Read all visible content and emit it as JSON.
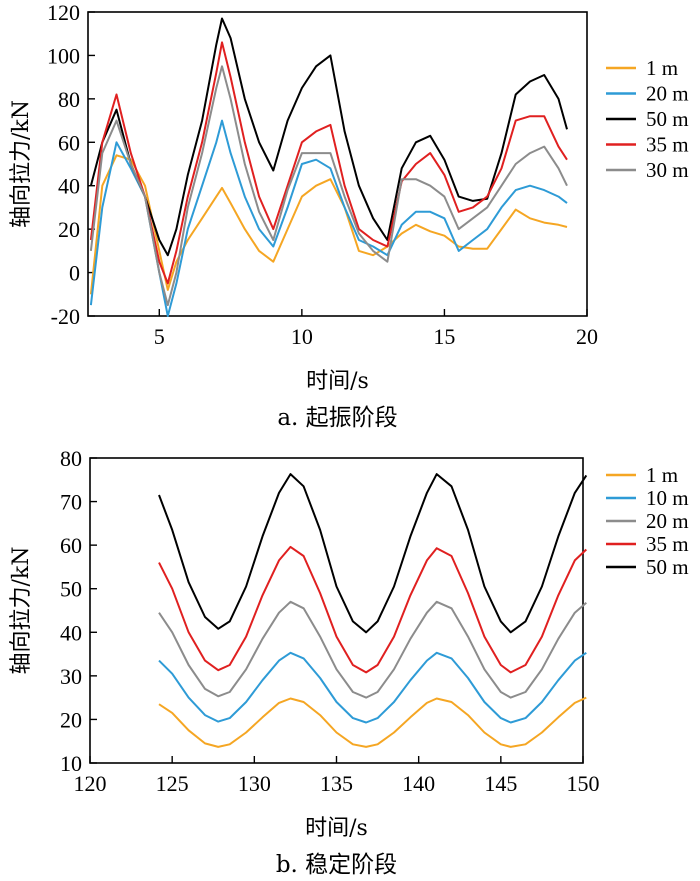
{
  "chart_data": [
    {
      "type": "line",
      "caption": "a. 起振阶段",
      "xlabel": "时间/s",
      "ylabel": "轴向拉力/kN",
      "xlim": [
        2.5,
        20
      ],
      "ylim": [
        -20,
        120
      ],
      "xticks": [
        5,
        10,
        15,
        20
      ],
      "yticks": [
        -20,
        0,
        20,
        40,
        60,
        80,
        100,
        120
      ],
      "legend_position": "right",
      "series": [
        {
          "name": "1 m",
          "color": "#f5a623",
          "x": [
            2.6,
            3.0,
            3.5,
            4.0,
            4.5,
            5.0,
            5.3,
            5.6,
            6.0,
            6.5,
            7.0,
            7.2,
            7.5,
            8.0,
            8.5,
            9.0,
            9.5,
            10.0,
            10.5,
            11.0,
            11.5,
            12.0,
            12.5,
            13.0,
            13.5,
            14.0,
            14.5,
            15.0,
            15.5,
            16.0,
            16.5,
            17.0,
            17.5,
            18.0,
            18.5,
            19.0,
            19.3
          ],
          "y": [
            -10,
            40,
            54,
            52,
            40,
            10,
            -8,
            5,
            15,
            25,
            35,
            39,
            32,
            20,
            10,
            5,
            20,
            35,
            40,
            43,
            30,
            10,
            8,
            12,
            18,
            22,
            19,
            17,
            12,
            11,
            11,
            20,
            29,
            25,
            23,
            22,
            21
          ]
        },
        {
          "name": "20 m",
          "color": "#2e9bd6",
          "x": [
            2.6,
            3.0,
            3.5,
            4.0,
            4.5,
            5.0,
            5.3,
            5.6,
            6.0,
            6.5,
            7.0,
            7.2,
            7.5,
            8.0,
            8.5,
            9.0,
            9.5,
            10.0,
            10.5,
            11.0,
            11.5,
            12.0,
            12.5,
            13.0,
            13.5,
            14.0,
            14.5,
            15.0,
            15.5,
            16.0,
            16.5,
            17.0,
            17.5,
            18.0,
            18.5,
            19.0,
            19.3
          ],
          "y": [
            -15,
            30,
            60,
            48,
            35,
            0,
            -20,
            -5,
            20,
            40,
            60,
            70,
            55,
            35,
            20,
            12,
            30,
            50,
            52,
            48,
            30,
            15,
            12,
            8,
            22,
            28,
            28,
            25,
            10,
            15,
            20,
            30,
            38,
            40,
            38,
            35,
            32
          ]
        },
        {
          "name": "50 m",
          "color": "#000000",
          "x": [
            2.6,
            3.0,
            3.5,
            4.0,
            4.5,
            5.0,
            5.3,
            5.6,
            6.0,
            6.5,
            7.0,
            7.2,
            7.5,
            8.0,
            8.5,
            9.0,
            9.5,
            10.0,
            10.5,
            11.0,
            11.5,
            12.0,
            12.5,
            13.0,
            13.5,
            14.0,
            14.5,
            15.0,
            15.5,
            16.0,
            16.5,
            17.0,
            17.5,
            18.0,
            18.5,
            19.0,
            19.3
          ],
          "y": [
            40,
            60,
            75,
            50,
            35,
            15,
            8,
            20,
            45,
            70,
            105,
            117,
            108,
            80,
            60,
            47,
            70,
            85,
            95,
            100,
            65,
            40,
            25,
            15,
            48,
            60,
            63,
            52,
            35,
            33,
            34,
            55,
            82,
            88,
            91,
            80,
            66
          ]
        },
        {
          "name": "35 m",
          "color": "#e02020",
          "x": [
            2.6,
            3.0,
            3.5,
            4.0,
            4.5,
            5.0,
            5.3,
            5.6,
            6.0,
            6.5,
            7.0,
            7.2,
            7.5,
            8.0,
            8.5,
            9.0,
            9.5,
            10.0,
            10.5,
            11.0,
            11.5,
            12.0,
            12.5,
            13.0,
            13.5,
            14.0,
            14.5,
            15.0,
            15.5,
            16.0,
            16.5,
            17.0,
            17.5,
            18.0,
            18.5,
            19.0,
            19.3
          ],
          "y": [
            15,
            60,
            82,
            55,
            35,
            5,
            -5,
            10,
            35,
            60,
            92,
            106,
            90,
            60,
            35,
            20,
            40,
            60,
            65,
            68,
            40,
            20,
            15,
            12,
            42,
            50,
            55,
            45,
            28,
            30,
            35,
            48,
            70,
            72,
            72,
            58,
            52
          ]
        },
        {
          "name": "30 m",
          "color": "#8c8c8c",
          "x": [
            2.6,
            3.0,
            3.5,
            4.0,
            4.5,
            5.0,
            5.3,
            5.6,
            6.0,
            6.5,
            7.0,
            7.2,
            7.5,
            8.0,
            8.5,
            9.0,
            9.5,
            10.0,
            10.5,
            11.0,
            11.5,
            12.0,
            12.5,
            13.0,
            13.5,
            14.0,
            14.5,
            15.0,
            15.5,
            16.0,
            16.5,
            17.0,
            17.5,
            18.0,
            18.5,
            19.0,
            19.3
          ],
          "y": [
            10,
            55,
            70,
            50,
            35,
            0,
            -15,
            0,
            30,
            55,
            85,
            95,
            80,
            50,
            28,
            15,
            38,
            55,
            55,
            55,
            35,
            18,
            10,
            5,
            43,
            43,
            40,
            35,
            20,
            25,
            30,
            40,
            50,
            55,
            58,
            48,
            40
          ]
        }
      ]
    },
    {
      "type": "line",
      "caption": "b. 稳定阶段",
      "xlabel": "时间/s",
      "ylabel": "轴向拉力/kN",
      "xlim": [
        120,
        150
      ],
      "ylim": [
        10,
        80
      ],
      "xticks": [
        120,
        125,
        130,
        135,
        140,
        145,
        150
      ],
      "yticks": [
        10,
        20,
        30,
        40,
        50,
        60,
        70,
        80
      ],
      "legend_position": "right",
      "sine_x": [
        124.2,
        125,
        126,
        127,
        127.8,
        128.5,
        129.5,
        130.5,
        131.5,
        132.2,
        133,
        134,
        135,
        136,
        136.8,
        137.5,
        138.5,
        139.5,
        140.5,
        141.1,
        142,
        143,
        144,
        145,
        145.6,
        146.5,
        147.5,
        148.5,
        149.5,
        150.2
      ],
      "series": [
        {
          "name": "1 m",
          "color": "#f5a623",
          "y": [
            23.5,
            21.5,
            17.5,
            14.5,
            13.7,
            14.3,
            17.0,
            20.5,
            23.8,
            24.8,
            24.0,
            21.0,
            17.0,
            14.3,
            13.7,
            14.3,
            17.0,
            20.5,
            23.8,
            24.8,
            24.0,
            21.0,
            17.0,
            14.3,
            13.7,
            14.3,
            17.0,
            20.5,
            23.8,
            25.0
          ]
        },
        {
          "name": "10 m",
          "color": "#2e9bd6",
          "y": [
            33.5,
            30.5,
            25.0,
            21.0,
            19.5,
            20.3,
            24.0,
            29.0,
            33.5,
            35.3,
            34.0,
            29.5,
            24.0,
            20.3,
            19.3,
            20.3,
            24.0,
            29.0,
            33.5,
            35.3,
            34.0,
            29.5,
            24.0,
            20.3,
            19.3,
            20.3,
            24.0,
            29.0,
            33.5,
            35.3
          ]
        },
        {
          "name": "20 m",
          "color": "#8c8c8c",
          "y": [
            44.5,
            40.0,
            32.5,
            27.0,
            25.3,
            26.3,
            31.5,
            38.5,
            44.5,
            47.0,
            45.5,
            39.0,
            31.5,
            26.3,
            25.0,
            26.3,
            31.5,
            38.5,
            44.5,
            47.0,
            45.5,
            39.0,
            31.5,
            26.3,
            25.0,
            26.3,
            31.5,
            38.5,
            44.5,
            46.8
          ]
        },
        {
          "name": "35 m",
          "color": "#e02020",
          "y": [
            56.0,
            50.0,
            40.0,
            33.5,
            31.3,
            32.5,
            39.0,
            48.5,
            56.5,
            59.6,
            57.5,
            49.0,
            39.0,
            32.5,
            30.8,
            32.5,
            39.0,
            48.5,
            56.5,
            59.3,
            57.5,
            49.0,
            39.0,
            32.5,
            30.8,
            32.5,
            39.0,
            48.5,
            56.5,
            59.0
          ]
        },
        {
          "name": "50 m",
          "color": "#000000",
          "y": [
            71.5,
            63.5,
            51.5,
            43.5,
            40.8,
            42.5,
            50.5,
            62.0,
            72.0,
            76.3,
            73.5,
            63.5,
            50.5,
            42.5,
            40.0,
            42.5,
            50.5,
            62.0,
            72.0,
            76.3,
            73.5,
            63.5,
            50.5,
            42.5,
            40.0,
            42.5,
            50.5,
            62.0,
            72.0,
            76.0
          ]
        }
      ]
    }
  ]
}
